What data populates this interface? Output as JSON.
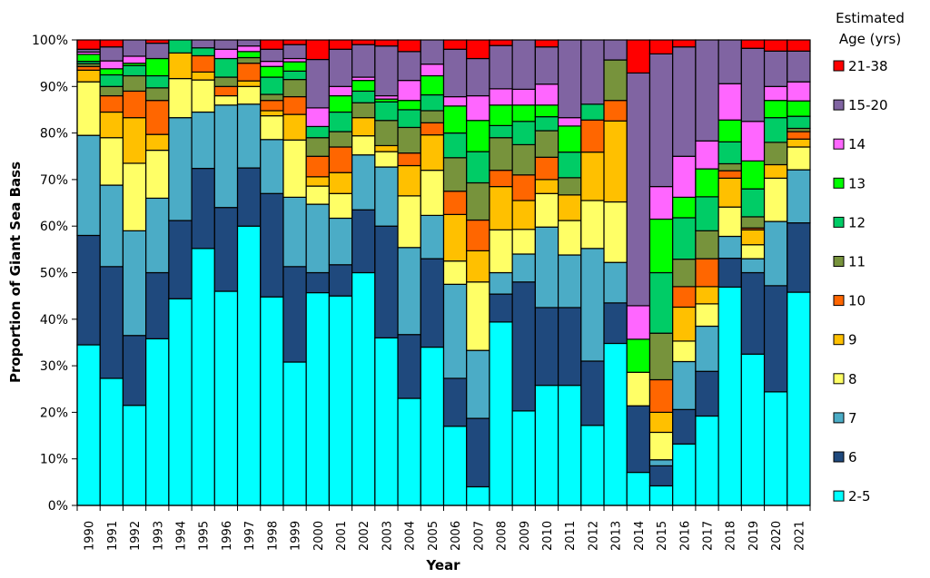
{
  "chart_data": {
    "type": "bar",
    "stacked": true,
    "normalized": true,
    "title": "",
    "xlabel": "Year",
    "ylabel": "Proportion of Giant Sea Bass",
    "ylim": [
      0,
      100
    ],
    "yticks": [
      "0%",
      "10%",
      "20%",
      "30%",
      "40%",
      "50%",
      "60%",
      "70%",
      "80%",
      "90%",
      "100%"
    ],
    "grid": false,
    "legend": {
      "title_line1": "Estimated",
      "title_line2": "Age (yrs)",
      "placement": "right"
    },
    "categories": [
      "1990",
      "1991",
      "1992",
      "1993",
      "1994",
      "1995",
      "1996",
      "1997",
      "1998",
      "1999",
      "2000",
      "2001",
      "2002",
      "2003",
      "2004",
      "2005",
      "2006",
      "2007",
      "2008",
      "2009",
      "2010",
      "2011",
      "2012",
      "2013",
      "2014",
      "2015",
      "2016",
      "2017",
      "2018",
      "2019",
      "2020",
      "2021"
    ],
    "series": [
      {
        "name": "2-5",
        "color": "#00FFFF",
        "values": [
          34.5,
          27.3,
          21.5,
          35.8,
          44.4,
          55.2,
          46,
          60,
          44.8,
          30.8,
          45.7,
          45,
          50,
          36,
          23,
          34,
          17,
          4,
          39.4,
          20.3,
          25.8,
          25.8,
          17.2,
          34.8,
          7.1,
          4.2,
          13.2,
          19.2,
          46.9,
          32.5,
          24.4,
          45.8
        ]
      },
      {
        "name": "6",
        "color": "#1F497D",
        "values": [
          23.5,
          24,
          15,
          14.2,
          16.8,
          17.2,
          18,
          12.5,
          22.2,
          20.5,
          4.3,
          6.7,
          13.5,
          24,
          13.7,
          19,
          10.3,
          14.7,
          6,
          27.7,
          16.7,
          16.7,
          13.8,
          8.7,
          14.3,
          4.3,
          7.4,
          9.6,
          6.2,
          17.5,
          22.8,
          14.9
        ]
      },
      {
        "name": "7",
        "color": "#4BACC6",
        "values": [
          21.5,
          17.5,
          22.5,
          16,
          22.1,
          12.1,
          22,
          13.7,
          11.6,
          14.9,
          14.7,
          10,
          11.8,
          12.7,
          18.7,
          9.3,
          20.2,
          14.6,
          4.6,
          6,
          17.3,
          11.3,
          24.2,
          8.7,
          0,
          1.3,
          10.3,
          9.7,
          4.7,
          3,
          13.8,
          11.4
        ]
      },
      {
        "name": "8",
        "color": "#FFFF66",
        "values": [
          11.5,
          10.2,
          14.5,
          10.3,
          8.4,
          6.9,
          2,
          3.8,
          5.1,
          12.3,
          3.9,
          5.3,
          4.1,
          3.3,
          11.1,
          9.7,
          5,
          14.7,
          9.2,
          5.3,
          7.2,
          7.4,
          10.3,
          13,
          7.2,
          5.9,
          4.4,
          4.8,
          6.3,
          3,
          9.3,
          4.9
        ]
      },
      {
        "name": "9",
        "color": "#FFC000",
        "values": [
          2.5,
          5.5,
          9.8,
          3.4,
          5.5,
          1.7,
          0,
          1.2,
          1.1,
          5.5,
          2,
          4.5,
          3.9,
          1.3,
          6.5,
          7.6,
          10,
          6.7,
          9.3,
          6.2,
          3,
          5.5,
          10.4,
          17.4,
          0,
          4.3,
          7.3,
          3.7,
          6.2,
          3.2,
          2.9,
          1.7
        ]
      },
      {
        "name": "10",
        "color": "#FF6600",
        "values": [
          0.8,
          3.5,
          5.7,
          7.3,
          0,
          3.5,
          2,
          3.8,
          2.2,
          3.8,
          4.4,
          5.5,
          0,
          0,
          2.7,
          2.6,
          5,
          6.6,
          3.5,
          5.5,
          4.8,
          0,
          6.9,
          4.4,
          0,
          7,
          4.4,
          6,
          1.6,
          0.4,
          0,
          1.6
        ]
      },
      {
        "name": "11",
        "color": "#77933C",
        "values": [
          0.6,
          2,
          3.3,
          2.7,
          0,
          0,
          2,
          1.2,
          1.3,
          3.7,
          4,
          3.3,
          3.2,
          5.4,
          5.5,
          2.6,
          7.2,
          8,
          7,
          6.5,
          5.7,
          3.7,
          0,
          8.7,
          0,
          10,
          5.9,
          6,
          1.5,
          2.4,
          4.8,
          0.7
        ]
      },
      {
        "name": "12",
        "color": "#00CC66",
        "values": [
          0.5,
          2.5,
          2.2,
          2.6,
          2.8,
          1.7,
          4,
          0,
          3.7,
          1.8,
          2.4,
          4.2,
          2.5,
          4,
          3.8,
          3.4,
          5.3,
          6.7,
          2.6,
          5,
          3,
          5.5,
          3.4,
          0,
          0,
          13,
          8.9,
          7.3,
          4.7,
          6,
          5.3,
          2.6
        ]
      },
      {
        "name": "13",
        "color": "#00FF00",
        "values": [
          1.5,
          1.3,
          0.5,
          3.7,
          0,
          0,
          0,
          1.3,
          2.3,
          2,
          0,
          3.5,
          2.3,
          0.6,
          2,
          4.1,
          5.8,
          6.7,
          4.4,
          3.5,
          2.5,
          5.6,
          0,
          0,
          7.1,
          11.5,
          4.4,
          6,
          4.7,
          6,
          3.7,
          3.3
        ]
      },
      {
        "name": "14",
        "color": "#FF66FF",
        "values": [
          0.5,
          1.7,
          1.5,
          0,
          0,
          0,
          2,
          1.2,
          1.1,
          0.7,
          4,
          2,
          0.7,
          0.7,
          4.3,
          2.5,
          2,
          5.3,
          3.5,
          3.4,
          4.5,
          1.8,
          0,
          0,
          7.2,
          7,
          8.8,
          6,
          7.8,
          8.5,
          3,
          4.1
        ]
      },
      {
        "name": "15-20",
        "color": "#8064A2",
        "values": [
          0.6,
          3,
          3.5,
          3.3,
          0,
          1.7,
          2,
          1.3,
          2.6,
          3,
          10.4,
          8,
          7,
          10.7,
          6.2,
          5.2,
          10.2,
          8,
          9.3,
          10.6,
          8,
          16.7,
          13.8,
          4.3,
          50,
          28.5,
          23.5,
          21.7,
          9.4,
          15.7,
          7.6,
          6.6
        ]
      },
      {
        "name": "21-38",
        "color": "#FF0000",
        "values": [
          2,
          1.5,
          0,
          0.7,
          0,
          0,
          0,
          0,
          2,
          1,
          4.2,
          2,
          1,
          1.3,
          2.5,
          0,
          2,
          4,
          1.2,
          0,
          1.5,
          0,
          0,
          0,
          7.1,
          3,
          1.5,
          0,
          0,
          1.8,
          2.4,
          2.4
        ]
      }
    ]
  }
}
